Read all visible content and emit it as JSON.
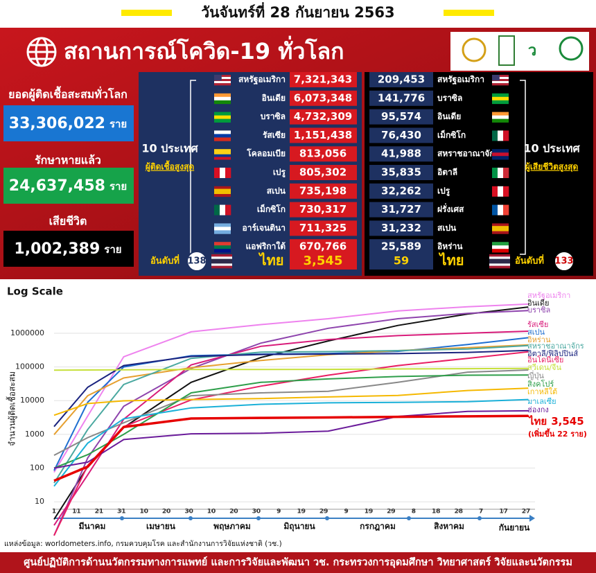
{
  "header": {
    "date": "วันจันทร์ที่ 28 กันยายน 2563"
  },
  "banner": {
    "title": "สถานการณ์โควิด-19 ทั่วโลก"
  },
  "summary": {
    "cases": {
      "label": "ยอดผู้ติดเชื้อสะสมทั่วโลก",
      "value": "33,306,022",
      "unit": "ราย"
    },
    "recovered": {
      "label": "รักษาหายแล้ว",
      "value": "24,637,458",
      "unit": "ราย"
    },
    "deaths": {
      "label": "เสียชีวิต",
      "value": "1,002,389",
      "unit": "ราย"
    }
  },
  "cases_table": {
    "title": "10 ประเทศ",
    "subtitle": "ผู้ติดเชื้อสูงสุด",
    "rows": [
      {
        "country": "สหรัฐอเมริกา",
        "value": "7,321,343"
      },
      {
        "country": "อินเดีย",
        "value": "6,073,348"
      },
      {
        "country": "บราซิล",
        "value": "4,732,309"
      },
      {
        "country": "รัสเซีย",
        "value": "1,151,438"
      },
      {
        "country": "โคลอมเบีย",
        "value": "813,056"
      },
      {
        "country": "เปรู",
        "value": "805,302"
      },
      {
        "country": "สเปน",
        "value": "735,198"
      },
      {
        "country": "เม็กซิโก",
        "value": "730,317"
      },
      {
        "country": "อาร์เจนตินา",
        "value": "711,325"
      },
      {
        "country": "แอฟริกาใต้",
        "value": "670,766"
      }
    ],
    "thailand": {
      "rank_label": "อันดับที่",
      "rank": 138,
      "country": "ไทย",
      "value": "3,545"
    }
  },
  "deaths_table": {
    "title": "10 ประเทศ",
    "subtitle": "ผู้เสียชีวิตสูงสุด",
    "rows": [
      {
        "country": "สหรัฐอเมริกา",
        "value": "209,453"
      },
      {
        "country": "บราซิล",
        "value": "141,776"
      },
      {
        "country": "อินเดีย",
        "value": "95,574"
      },
      {
        "country": "เม็กซิโก",
        "value": "76,430"
      },
      {
        "country": "สหราชอาณาจักร",
        "value": "41,988"
      },
      {
        "country": "อิตาลี",
        "value": "35,835"
      },
      {
        "country": "เปรู",
        "value": "32,262"
      },
      {
        "country": "ฝรั่งเศส",
        "value": "31,727"
      },
      {
        "country": "สเปน",
        "value": "31,232"
      },
      {
        "country": "อิหร่าน",
        "value": "25,589"
      }
    ],
    "thailand": {
      "rank_label": "อันดับที่",
      "rank": 133,
      "country": "ไทย",
      "value": "59"
    }
  },
  "chart_data": {
    "type": "line",
    "title": "Log Scale",
    "y_label": "จำนวนผู้ติดเชื้อสะสม",
    "log_scale": true,
    "grid": true,
    "x": [
      0,
      15,
      31,
      61,
      92,
      122,
      153,
      184,
      211
    ],
    "xlim": [
      0,
      214
    ],
    "xticks": [
      {
        "value": 0,
        "label": "1"
      },
      {
        "value": 10,
        "label": "11"
      },
      {
        "value": 20,
        "label": "21"
      },
      {
        "value": 30,
        "label": "31"
      },
      {
        "value": 40,
        "label": "10"
      },
      {
        "value": 50,
        "label": "20"
      },
      {
        "value": 60,
        "label": "30"
      },
      {
        "value": 70,
        "label": "10"
      },
      {
        "value": 80,
        "label": "20"
      },
      {
        "value": 90,
        "label": "30"
      },
      {
        "value": 100,
        "label": "9"
      },
      {
        "value": 110,
        "label": "19"
      },
      {
        "value": 120,
        "label": "29"
      },
      {
        "value": 130,
        "label": "9"
      },
      {
        "value": 140,
        "label": "19"
      },
      {
        "value": 150,
        "label": "29"
      },
      {
        "value": 160,
        "label": "8"
      },
      {
        "value": 170,
        "label": "18"
      },
      {
        "value": 180,
        "label": "28"
      },
      {
        "value": 190,
        "label": "7"
      },
      {
        "value": 200,
        "label": "17"
      },
      {
        "value": 210,
        "label": "27"
      }
    ],
    "months": [
      "มีนาคม",
      "เมษายน",
      "พฤษภาคม",
      "มิถุนายน",
      "กรกฎาคม",
      "สิงหาคม",
      "กันยายน"
    ],
    "ylim": [
      6,
      8000000
    ],
    "yticks": [
      10,
      100,
      1000,
      10000,
      100000,
      1000000
    ],
    "series": [
      {
        "name": "สหรัฐอเมริกา",
        "color": "#ee82ee",
        "values": [
          75,
          3500,
          200000,
          1100000,
          1800000,
          2700000,
          4600000,
          6100000,
          7300000
        ]
      },
      {
        "name": "อินเดีย",
        "color": "#111111",
        "values": [
          3,
          110,
          1600,
          35000,
          190000,
          590000,
          1700000,
          3700000,
          6000000
        ]
      },
      {
        "name": "บราซิล",
        "color": "#8e44ad",
        "values": [
          1,
          200,
          6800,
          90000,
          510000,
          1400000,
          2700000,
          3900000,
          4700000
        ]
      },
      {
        "name": "รัสเซีย",
        "color": "#d81b7a",
        "values": [
          2,
          63,
          2800,
          115000,
          410000,
          650000,
          850000,
          1000000,
          1150000
        ]
      },
      {
        "name": "สเปน",
        "color": "#1f6fd1",
        "values": [
          84,
          9000,
          100000,
          215000,
          240000,
          250000,
          290000,
          460000,
          735000
        ]
      },
      {
        "name": "อิหร่าน",
        "color": "#e6a030",
        "values": [
          980,
          14000,
          47000,
          95000,
          155000,
          230000,
          305000,
          375000,
          450000
        ]
      },
      {
        "name": "สหราชอาณาจักร",
        "color": "#4aa8a0",
        "values": [
          36,
          1400,
          30000,
          180000,
          275000,
          285000,
          305000,
          340000,
          430000
        ]
      },
      {
        "name": "อิตาลี/ฟิลิปปินส์",
        "color": "#1a237e",
        "values": [
          1700,
          25000,
          110000,
          205000,
          233000,
          241000,
          248000,
          270000,
          310000
        ]
      },
      {
        "name": "อินโดนีเซีย",
        "color": "#e91e63",
        "values": [
          1,
          120,
          1700,
          10500,
          27000,
          57000,
          110000,
          180000,
          280000
        ]
      },
      {
        "name": "สวีเดน/จีน",
        "color": "#c6e03a",
        "values": [
          80000,
          81000,
          82000,
          84000,
          84100,
          84800,
          87000,
          89000,
          90000
        ]
      },
      {
        "name": "ญี่ปุ่น",
        "color": "#888888",
        "values": [
          240,
          800,
          2200,
          14000,
          17000,
          19000,
          35000,
          70000,
          81000
        ]
      },
      {
        "name": "สิงคโปร์",
        "color": "#2e9e4a",
        "values": [
          100,
          250,
          1000,
          17000,
          35000,
          44000,
          52000,
          56800,
          57700
        ]
      },
      {
        "name": "เกาหลีใต้",
        "color": "#f5b800",
        "values": [
          3700,
          8200,
          9900,
          10800,
          11500,
          12900,
          14300,
          20000,
          23500
        ]
      },
      {
        "name": "มาเลเซีย",
        "color": "#1ab0d8",
        "values": [
          29,
          550,
          2900,
          6100,
          7800,
          8600,
          8900,
          9300,
          10800
        ]
      },
      {
        "name": "ฮ่องกง",
        "color": "#6a1b9a",
        "values": [
          100,
          150,
          700,
          1040,
          1080,
          1250,
          3400,
          4800,
          5000
        ]
      },
      {
        "name": "ไทย",
        "color": "#e60000",
        "values": [
          42,
          110,
          1650,
          2950,
          3080,
          3170,
          3310,
          3430,
          3545
        ]
      }
    ],
    "annotation": "(เพิ่มขึ้น 22 ราย)"
  },
  "footer": {
    "source": "แหล่งข้อมูล: worldometers.info, กรมควบคุมโรค และสำนักงานการวิจัยแห่งชาติ (วช.)",
    "organization": "ศูนย์ปฏิบัติการด้านนวัตกรรมทางการแพทย์ และการวิจัยและพัฒนา  วช.   กระทรวงการอุดมศึกษา วิทยาศาสตร์ วิจัยและนวัตกรรม"
  }
}
